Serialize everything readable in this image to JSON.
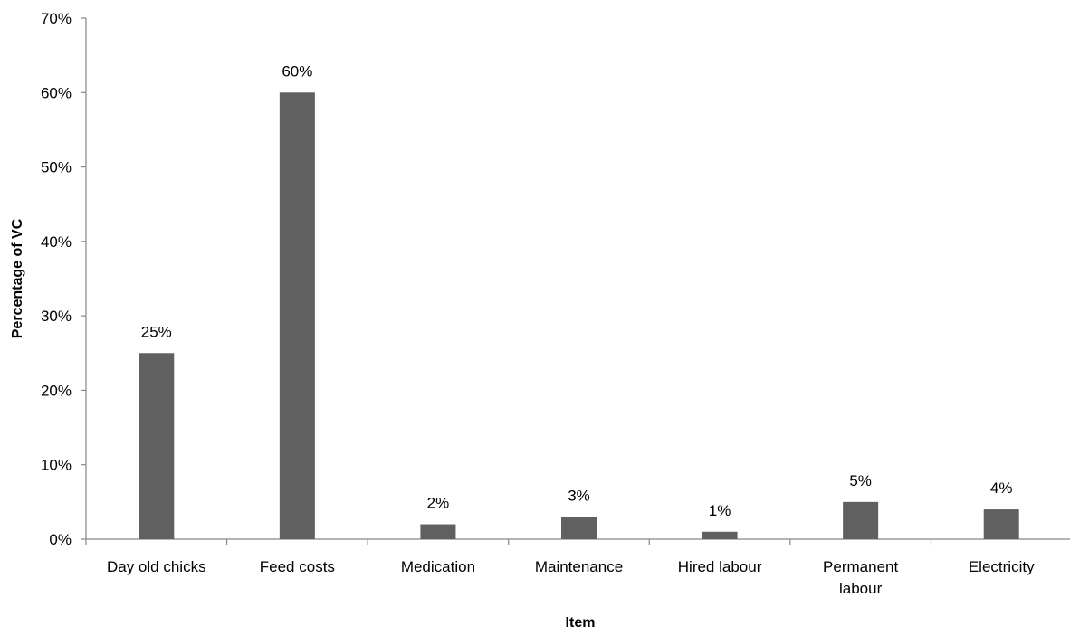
{
  "chart_data": {
    "type": "bar",
    "title": "",
    "xlabel": "Item",
    "ylabel": "Percentage of VC",
    "ylim": [
      0,
      70
    ],
    "y_ticks": [
      "0%",
      "10%",
      "20%",
      "30%",
      "40%",
      "50%",
      "60%",
      "70%"
    ],
    "y_unit": "%",
    "grid": false,
    "categories": [
      [
        "Day old chicks"
      ],
      [
        "Feed costs"
      ],
      [
        "Medication"
      ],
      [
        "Maintenance"
      ],
      [
        "Hired labour"
      ],
      [
        "Permanent",
        "labour"
      ],
      [
        "Electricity"
      ]
    ],
    "values": [
      25,
      60,
      2,
      3,
      1,
      5,
      4
    ],
    "data_labels": [
      "25%",
      "60%",
      "2%",
      "3%",
      "1%",
      "5%",
      "4%"
    ],
    "bar_color": "#606060",
    "axis_color": "#868686"
  }
}
